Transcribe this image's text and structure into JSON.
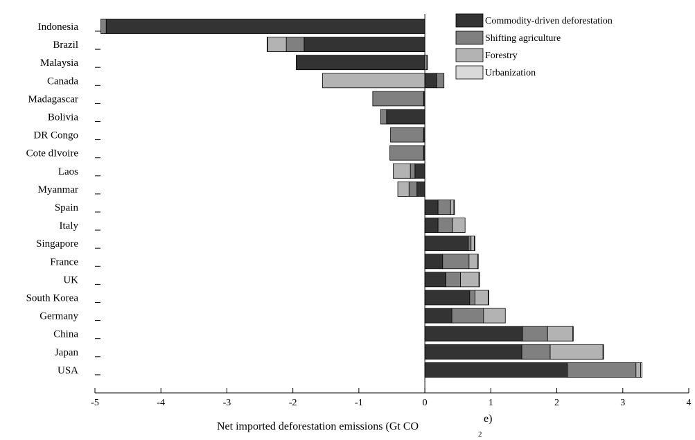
{
  "chart_data": {
    "type": "bar",
    "orientation": "horizontal",
    "stacked": true,
    "xlabel": "Net imported deforestation emissions (Gt CO",
    "xlabel_sub": "2",
    "xlabel_tail": "e)",
    "xlim": [
      -5,
      4
    ],
    "xticks": [
      "-5",
      "-4",
      "-3",
      "-2",
      "-1",
      "0",
      "1",
      "2",
      "3",
      "4"
    ],
    "categories": [
      "Indonesia",
      "Brazil",
      "Malaysia",
      "Canada",
      "Madagascar",
      "Bolivia",
      "DR Congo",
      "Cote dIvoire",
      "Laos",
      "Myanmar",
      "Spain",
      "Italy",
      "Singapore",
      "France",
      "UK",
      "South Korea",
      "Germany",
      "China",
      "Japan",
      "USA"
    ],
    "series": [
      {
        "name": "Commodity-driven deforestation",
        "color": "#333333",
        "values": [
          -4.83,
          -1.83,
          -1.95,
          0.18,
          -0.02,
          -0.58,
          -0.02,
          -0.02,
          -0.15,
          -0.12,
          0.2,
          0.2,
          0.66,
          0.27,
          0.32,
          0.68,
          0.41,
          1.48,
          1.47,
          2.16
        ]
      },
      {
        "name": "Shifting agriculture",
        "color": "#808080",
        "values": [
          -0.08,
          -0.27,
          0.0,
          0.11,
          -0.77,
          -0.09,
          -0.5,
          -0.51,
          -0.07,
          -0.12,
          0.19,
          0.22,
          0.04,
          0.4,
          0.22,
          0.08,
          0.48,
          0.38,
          0.43,
          1.04
        ]
      },
      {
        "name": "Forestry",
        "color": "#b3b3b3",
        "values": [
          0.0,
          -0.28,
          0.03,
          -1.55,
          0.0,
          0.0,
          0.0,
          0.0,
          -0.26,
          -0.17,
          0.05,
          0.19,
          0.05,
          0.13,
          0.28,
          0.2,
          0.33,
          0.38,
          0.8,
          0.07
        ]
      },
      {
        "name": "Urbanization",
        "color": "#d9d9d9",
        "values": [
          0.0,
          -0.01,
          0.01,
          0.0,
          0.0,
          0.0,
          0.0,
          0.0,
          0.0,
          0.0,
          0.01,
          0.0,
          0.01,
          0.01,
          0.01,
          0.01,
          0.0,
          0.01,
          0.01,
          0.02
        ]
      }
    ],
    "legend_position": "top-right",
    "grid": false
  }
}
